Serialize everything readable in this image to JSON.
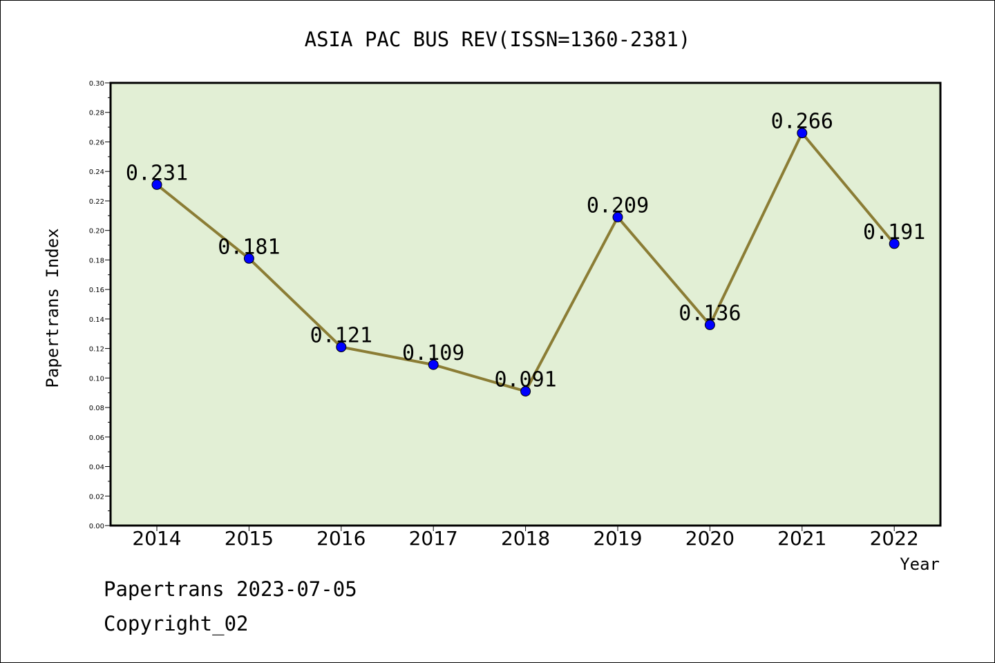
{
  "chart_data": {
    "type": "line",
    "title": "ASIA PAC BUS REV(ISSN=1360-2381)",
    "xlabel": "Year",
    "ylabel": "Papertrans Index",
    "ylim": [
      0,
      0.3
    ],
    "y_ticks": [
      "0.00",
      "0.02",
      "0.04",
      "0.06",
      "0.08",
      "0.10",
      "0.12",
      "0.14",
      "0.16",
      "0.18",
      "0.20",
      "0.22",
      "0.24",
      "0.26",
      "0.28",
      "0.30"
    ],
    "categories": [
      "2014",
      "2015",
      "2016",
      "2017",
      "2018",
      "2019",
      "2020",
      "2021",
      "2022"
    ],
    "values": [
      0.231,
      0.181,
      0.121,
      0.109,
      0.091,
      0.209,
      0.136,
      0.266,
      0.191
    ],
    "data_labels": [
      "0.231",
      "0.181",
      "0.121",
      "0.109",
      "0.091",
      "0.209",
      "0.136",
      "0.266",
      "0.191"
    ],
    "grid": false,
    "colors": {
      "plot_background": "#e2efd5",
      "line": "#8b7d35",
      "marker": "#0000ff"
    }
  },
  "footer": {
    "line1": "Papertrans 2023-07-05",
    "line2": "Copyright_02"
  }
}
